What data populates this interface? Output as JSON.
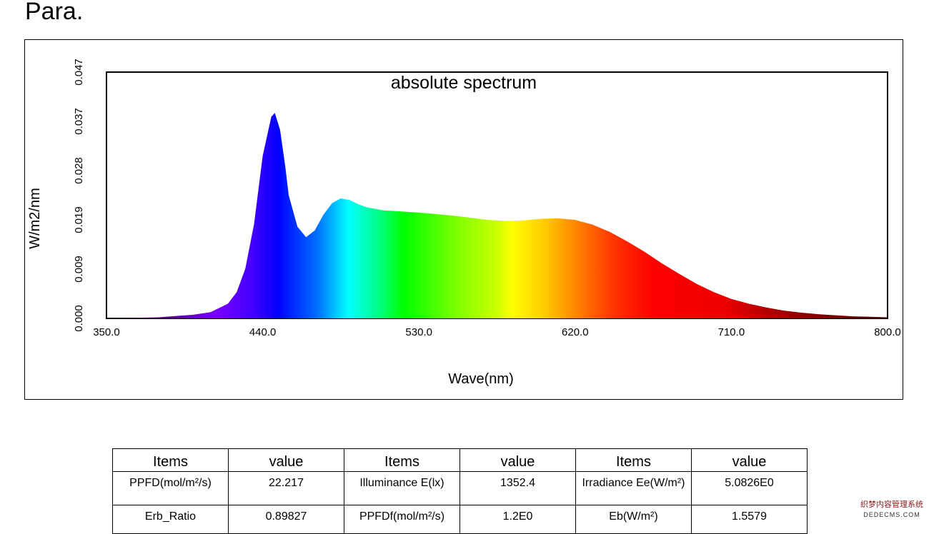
{
  "page": {
    "heading": "Para."
  },
  "chart_data": {
    "type": "area",
    "title": "absolute spectrum",
    "xlabel": "Wave(nm)",
    "ylabel": "W/m2/nm",
    "xlim": [
      350,
      800
    ],
    "ylim": [
      0,
      0.047
    ],
    "x_ticks": [
      "350.0",
      "440.0",
      "530.0",
      "620.0",
      "710.0",
      "800.0"
    ],
    "y_ticks": [
      "0.000",
      "0.009",
      "0.019",
      "0.028",
      "0.037",
      "0.047"
    ],
    "fill": "visible-spectrum gradient",
    "series": [
      {
        "x": [
          350,
          380,
          400,
          410,
          420,
          425,
          430,
          435,
          440,
          445,
          447,
          450,
          453,
          455,
          460,
          465,
          470,
          475,
          480,
          485,
          490,
          495,
          500,
          505,
          510,
          520,
          530,
          540,
          550,
          560,
          570,
          580,
          590,
          600,
          610,
          620,
          630,
          640,
          650,
          660,
          670,
          680,
          690,
          700,
          710,
          720,
          730,
          740,
          750,
          760,
          770,
          780,
          790,
          800
        ],
        "y": [
          0.0,
          0.0002,
          0.0007,
          0.0012,
          0.0028,
          0.005,
          0.0095,
          0.018,
          0.031,
          0.0385,
          0.0392,
          0.036,
          0.029,
          0.0235,
          0.0175,
          0.0155,
          0.0168,
          0.0198,
          0.022,
          0.0229,
          0.0226,
          0.0218,
          0.0212,
          0.0209,
          0.0206,
          0.0204,
          0.0202,
          0.0199,
          0.0196,
          0.0192,
          0.0188,
          0.0186,
          0.0187,
          0.019,
          0.0191,
          0.0188,
          0.0179,
          0.0165,
          0.0147,
          0.0127,
          0.0105,
          0.0085,
          0.0066,
          0.005,
          0.0037,
          0.0028,
          0.0021,
          0.0015,
          0.0011,
          0.0008,
          0.0006,
          0.0004,
          0.0003,
          0.0002
        ]
      }
    ]
  },
  "table": {
    "headers": [
      "Items",
      "value",
      "Items",
      "value",
      "Items",
      "value"
    ],
    "rows": [
      [
        "PPFD(mol/m²/s)",
        "22.217",
        "Illuminance E(lx)",
        "1352.4",
        "Irradiance Ee(W/m²)",
        "5.0826E0"
      ],
      [
        "Erb_Ratio",
        "0.89827",
        "PPFDf(mol/m²/s)",
        "1.2E0",
        "Eb(W/m²)",
        "1.5579"
      ]
    ]
  },
  "watermark": {
    "line1": "织梦内容管理系统",
    "line2": "DEDECMS.COM"
  }
}
